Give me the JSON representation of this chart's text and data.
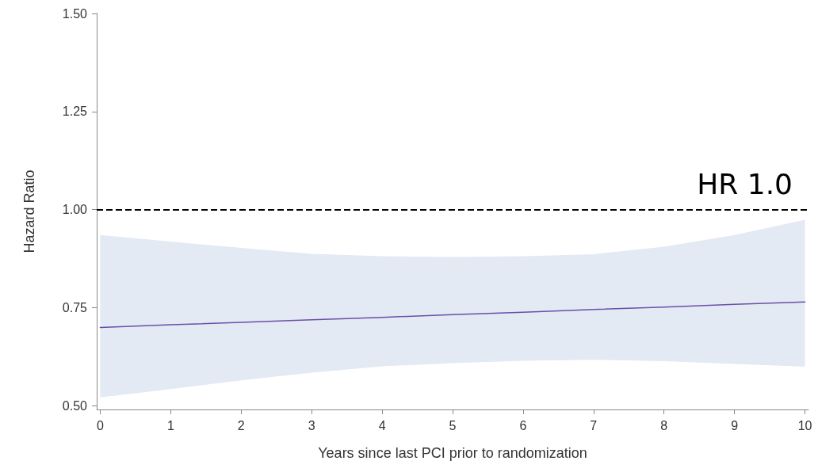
{
  "chart_data": {
    "type": "line",
    "xlabel": "Years since last PCI prior to randomization",
    "ylabel": "Hazard Ratio",
    "x": [
      0,
      1,
      2,
      3,
      4,
      5,
      6,
      7,
      8,
      9,
      10
    ],
    "series": [
      {
        "color": "#6a4fa8",
        "values": [
          0.699,
          0.706,
          0.712,
          0.719,
          0.725,
          0.732,
          0.738,
          0.745,
          0.751,
          0.758,
          0.764
        ],
        "lower": [
          0.521,
          0.542,
          0.564,
          0.584,
          0.6,
          0.608,
          0.614,
          0.617,
          0.613,
          0.606,
          0.599
        ],
        "upper": [
          0.935,
          0.918,
          0.902,
          0.887,
          0.881,
          0.879,
          0.881,
          0.886,
          0.905,
          0.935,
          0.974
        ]
      }
    ],
    "xlim": [
      -0.05,
      10.05
    ],
    "xticks": [
      0,
      1,
      2,
      3,
      4,
      5,
      6,
      7,
      8,
      9,
      10
    ],
    "ylim": [
      0.49,
      1.5
    ],
    "yticks": [
      {
        "value": 0.5,
        "label": "0.50"
      },
      {
        "value": 0.75,
        "label": "0.75"
      },
      {
        "value": 1.0,
        "label": "1.00"
      },
      {
        "value": 1.25,
        "label": "1.25"
      },
      {
        "value": 1.5,
        "label": "1.50"
      }
    ],
    "ref_lines": [
      {
        "axis": "y",
        "value": 1.0,
        "label": "HR 1.0",
        "color": "#000000",
        "line_style": "dashed"
      }
    ],
    "grid": false,
    "marker": "none",
    "line_style": "solid"
  }
}
